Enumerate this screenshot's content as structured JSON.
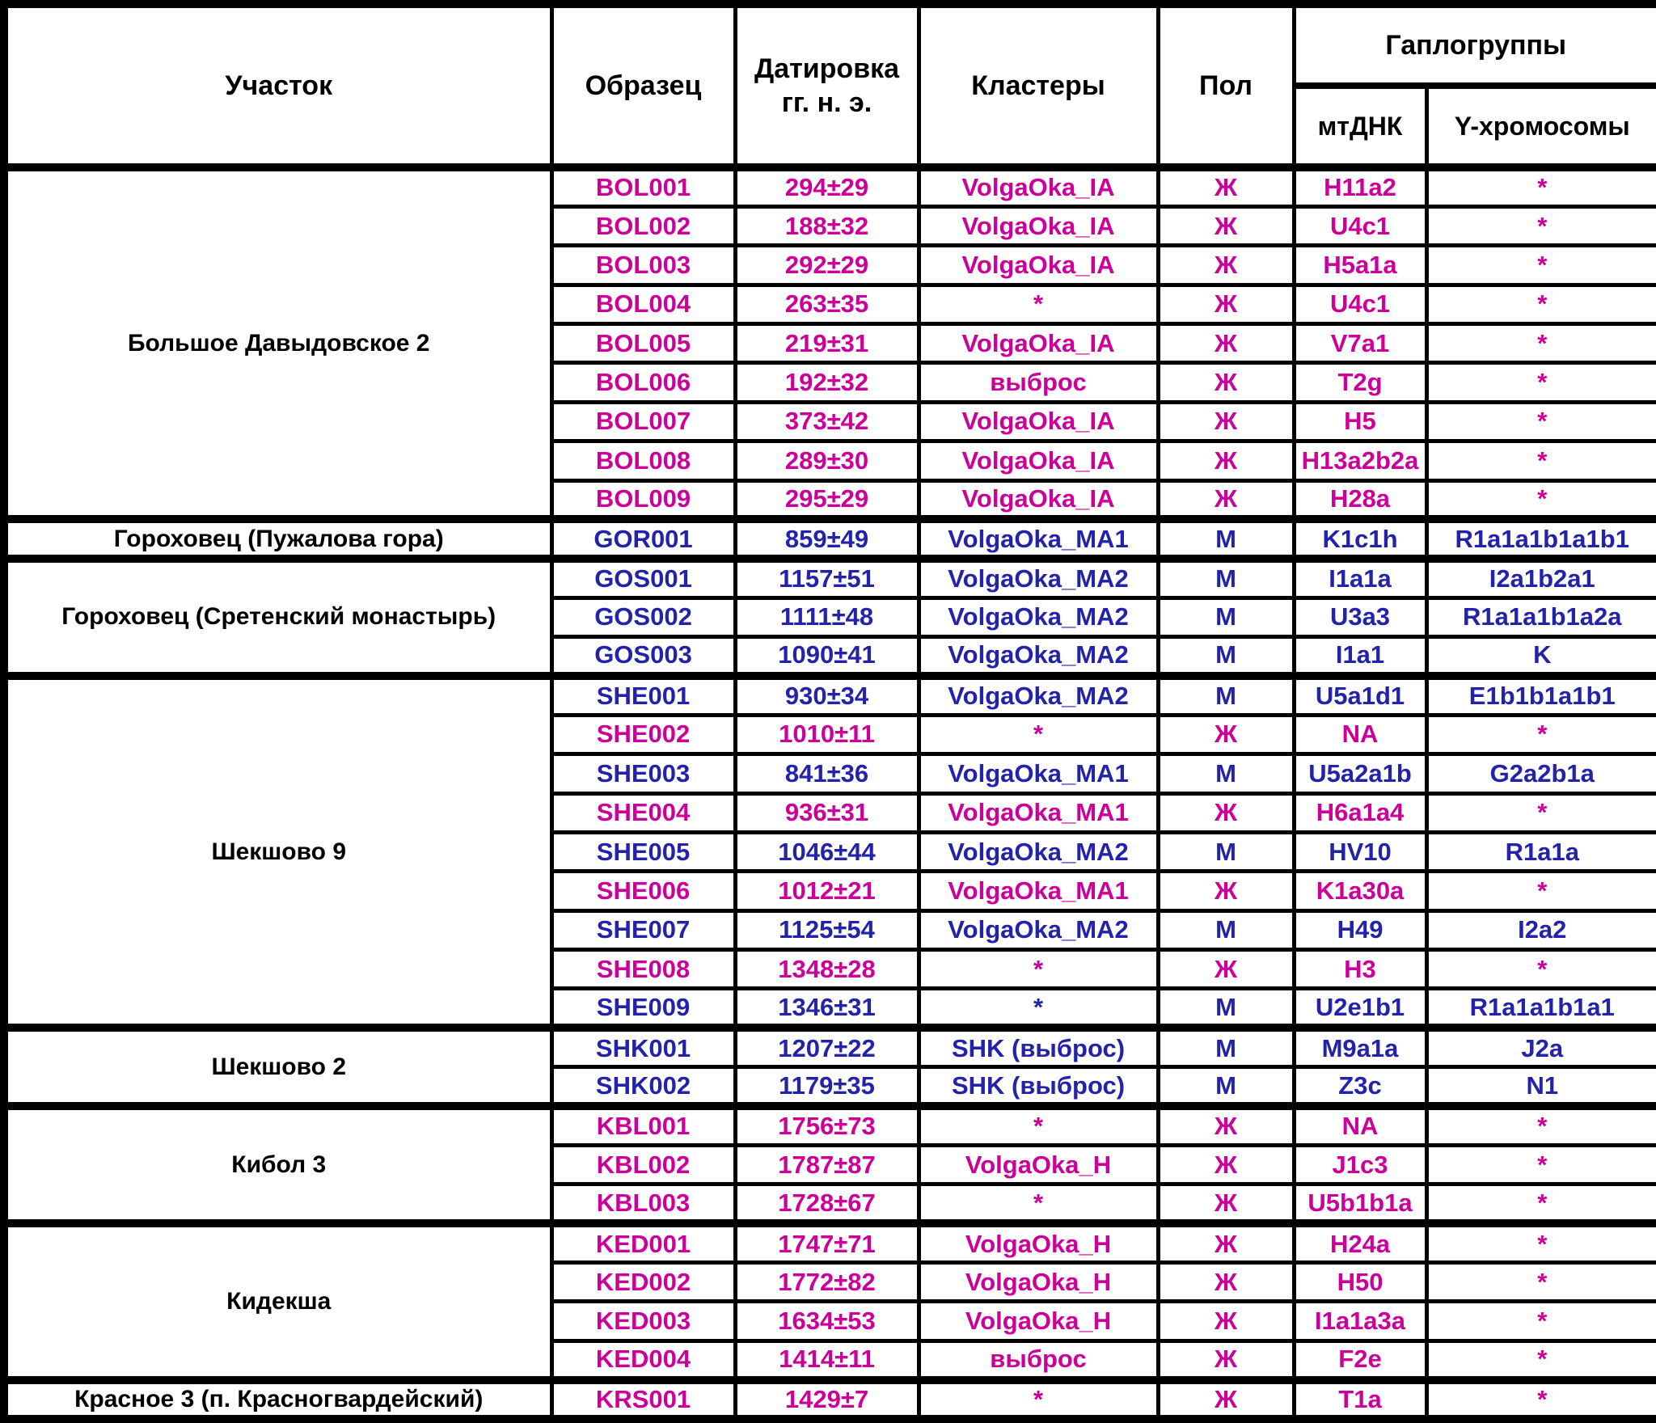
{
  "header": {
    "site": "Участок",
    "sample": "Образец",
    "dating_line1": "Датировка",
    "dating_line2": "гг. н. э.",
    "clusters": "Кластеры",
    "sex": "Пол",
    "haplogroups": "Гаплогруппы",
    "mtdna": "мтДНК",
    "y_chromosome": "Y-хромосомы"
  },
  "colors": {
    "female_text": "#CC0099",
    "male_text": "#2222AA",
    "header_text": "#000000",
    "border_and_grid": "#000000",
    "background": "#FFFFFF"
  },
  "chart_data": {
    "type": "table",
    "columns": [
      "Участок",
      "Образец",
      "Датировка гг. н. э.",
      "Кластеры",
      "Пол",
      "мтДНК",
      "Y-хромосомы"
    ],
    "column_group": {
      "label": "Гаплогруппы",
      "spans": [
        "мтДНК",
        "Y-хромосомы"
      ]
    },
    "sex_color_legend": {
      "Ж": "#CC0099",
      "М": "#2222AA"
    },
    "groups": [
      {
        "site": "Большое Давыдовское 2",
        "rows": [
          {
            "sample": "BOL001",
            "dating": "294±29",
            "cluster": "VolgaOka_IA",
            "sex": "Ж",
            "mtdna": "H11a2",
            "y_haplogroup": "*"
          },
          {
            "sample": "BOL002",
            "dating": "188±32",
            "cluster": "VolgaOka_IA",
            "sex": "Ж",
            "mtdna": "U4c1",
            "y_haplogroup": "*"
          },
          {
            "sample": "BOL003",
            "dating": "292±29",
            "cluster": "VolgaOka_IA",
            "sex": "Ж",
            "mtdna": "H5a1a",
            "y_haplogroup": "*"
          },
          {
            "sample": "BOL004",
            "dating": "263±35",
            "cluster": "*",
            "sex": "Ж",
            "mtdna": "U4c1",
            "y_haplogroup": "*"
          },
          {
            "sample": "BOL005",
            "dating": "219±31",
            "cluster": "VolgaOka_IA",
            "sex": "Ж",
            "mtdna": "V7a1",
            "y_haplogroup": "*"
          },
          {
            "sample": "BOL006",
            "dating": "192±32",
            "cluster": "выброс",
            "sex": "Ж",
            "mtdna": "T2g",
            "y_haplogroup": "*"
          },
          {
            "sample": "BOL007",
            "dating": "373±42",
            "cluster": "VolgaOka_IA",
            "sex": "Ж",
            "mtdna": "H5",
            "y_haplogroup": "*"
          },
          {
            "sample": "BOL008",
            "dating": "289±30",
            "cluster": "VolgaOka_IA",
            "sex": "Ж",
            "mtdna": "H13a2b2a",
            "y_haplogroup": "*"
          },
          {
            "sample": "BOL009",
            "dating": "295±29",
            "cluster": "VolgaOka_IA",
            "sex": "Ж",
            "mtdna": "H28a",
            "y_haplogroup": "*"
          }
        ]
      },
      {
        "site": "Гороховец (Пужалова гора)",
        "rows": [
          {
            "sample": "GOR001",
            "dating": "859±49",
            "cluster": "VolgaOka_MA1",
            "sex": "М",
            "mtdna": "K1c1h",
            "y_haplogroup": "R1a1a1b1a1b1"
          }
        ]
      },
      {
        "site": "Гороховец (Сретенский монастырь)",
        "rows": [
          {
            "sample": "GOS001",
            "dating": "1157±51",
            "cluster": "VolgaOka_MA2",
            "sex": "М",
            "mtdna": "I1a1a",
            "y_haplogroup": "I2a1b2a1"
          },
          {
            "sample": "GOS002",
            "dating": "1111±48",
            "cluster": "VolgaOka_MA2",
            "sex": "М",
            "mtdna": "U3a3",
            "y_haplogroup": "R1a1a1b1a2a"
          },
          {
            "sample": "GOS003",
            "dating": "1090±41",
            "cluster": "VolgaOka_MA2",
            "sex": "М",
            "mtdna": "I1a1",
            "y_haplogroup": "K"
          }
        ]
      },
      {
        "site": "Шекшово 9",
        "rows": [
          {
            "sample": "SHE001",
            "dating": "930±34",
            "cluster": "VolgaOka_MA2",
            "sex": "М",
            "mtdna": "U5a1d1",
            "y_haplogroup": "E1b1b1a1b1"
          },
          {
            "sample": "SHE002",
            "dating": "1010±11",
            "cluster": "*",
            "sex": "Ж",
            "mtdna": "NA",
            "y_haplogroup": "*"
          },
          {
            "sample": "SHE003",
            "dating": "841±36",
            "cluster": "VolgaOka_MA1",
            "sex": "М",
            "mtdna": "U5a2a1b",
            "y_haplogroup": "G2a2b1a"
          },
          {
            "sample": "SHE004",
            "dating": "936±31",
            "cluster": "VolgaOka_MA1",
            "sex": "Ж",
            "mtdna": "H6a1a4",
            "y_haplogroup": "*"
          },
          {
            "sample": "SHE005",
            "dating": "1046±44",
            "cluster": "VolgaOka_MA2",
            "sex": "М",
            "mtdna": "HV10",
            "y_haplogroup": "R1a1a"
          },
          {
            "sample": "SHE006",
            "dating": "1012±21",
            "cluster": "VolgaOka_MA1",
            "sex": "Ж",
            "mtdna": "K1a30a",
            "y_haplogroup": "*"
          },
          {
            "sample": "SHE007",
            "dating": "1125±54",
            "cluster": "VolgaOka_MA2",
            "sex": "М",
            "mtdna": "H49",
            "y_haplogroup": "I2a2"
          },
          {
            "sample": "SHE008",
            "dating": "1348±28",
            "cluster": "*",
            "sex": "Ж",
            "mtdna": "H3",
            "y_haplogroup": "*"
          },
          {
            "sample": "SHE009",
            "dating": "1346±31",
            "cluster": "*",
            "sex": "М",
            "mtdna": "U2e1b1",
            "y_haplogroup": "R1a1a1b1a1"
          }
        ]
      },
      {
        "site": "Шекшово 2",
        "rows": [
          {
            "sample": "SHK001",
            "dating": "1207±22",
            "cluster": "SHK (выброс)",
            "sex": "М",
            "mtdna": "M9a1a",
            "y_haplogroup": "J2a"
          },
          {
            "sample": "SHK002",
            "dating": "1179±35",
            "cluster": "SHK (выброс)",
            "sex": "М",
            "mtdna": "Z3c",
            "y_haplogroup": "N1"
          }
        ]
      },
      {
        "site": "Кибол 3",
        "rows": [
          {
            "sample": "KBL001",
            "dating": "1756±73",
            "cluster": "*",
            "sex": "Ж",
            "mtdna": "NA",
            "y_haplogroup": "*"
          },
          {
            "sample": "KBL002",
            "dating": "1787±87",
            "cluster": "VolgaOka_H",
            "sex": "Ж",
            "mtdna": "J1c3",
            "y_haplogroup": "*"
          },
          {
            "sample": "KBL003",
            "dating": "1728±67",
            "cluster": "*",
            "sex": "Ж",
            "mtdna": "U5b1b1a",
            "y_haplogroup": "*"
          }
        ]
      },
      {
        "site": "Кидекша",
        "rows": [
          {
            "sample": "KED001",
            "dating": "1747±71",
            "cluster": "VolgaOka_H",
            "sex": "Ж",
            "mtdna": "H24a",
            "y_haplogroup": "*"
          },
          {
            "sample": "KED002",
            "dating": "1772±82",
            "cluster": "VolgaOka_H",
            "sex": "Ж",
            "mtdna": "H50",
            "y_haplogroup": "*"
          },
          {
            "sample": "KED003",
            "dating": "1634±53",
            "cluster": "VolgaOka_H",
            "sex": "Ж",
            "mtdna": "I1a1a3a",
            "y_haplogroup": "*"
          },
          {
            "sample": "KED004",
            "dating": "1414±11",
            "cluster": "выброс",
            "sex": "Ж",
            "mtdna": "F2e",
            "y_haplogroup": "*"
          }
        ]
      },
      {
        "site": "Красное 3 (п. Красногвардейский)",
        "rows": [
          {
            "sample": "KRS001",
            "dating": "1429±7",
            "cluster": "*",
            "sex": "Ж",
            "mtdna": "T1a",
            "y_haplogroup": "*"
          }
        ]
      }
    ]
  }
}
